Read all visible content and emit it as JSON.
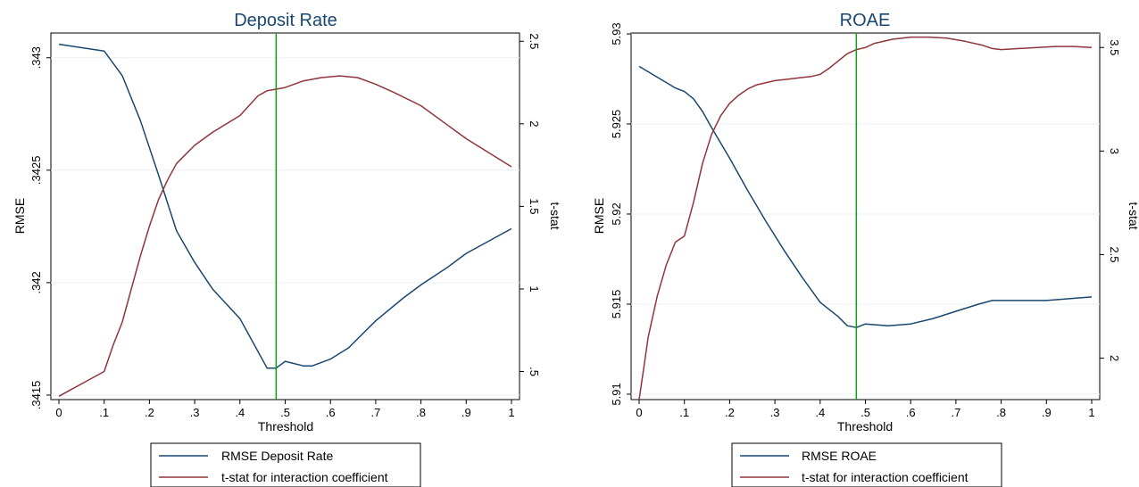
{
  "chart_data": [
    {
      "type": "line",
      "title": "Deposit Rate",
      "xlabel": "Threshold",
      "ylabel_left": "RMSE",
      "ylabel_right": "t-stat",
      "x_ticks": [
        "0",
        ".1",
        ".2",
        ".3",
        ".4",
        ".5",
        ".6",
        ".7",
        ".8",
        ".9",
        "1"
      ],
      "x_range": [
        0,
        1
      ],
      "left_ylim": [
        0.34148,
        0.34311
      ],
      "left_ticks": [
        ".3415",
        ".342",
        ".3425",
        ".343"
      ],
      "left_tick_values": [
        0.3415,
        0.342,
        0.3425,
        0.343
      ],
      "right_ylim": [
        0.33,
        2.55
      ],
      "right_ticks": [
        ".5",
        "1",
        "1.5",
        "2",
        "2.5"
      ],
      "right_tick_values": [
        0.5,
        1,
        1.5,
        2,
        2.5
      ],
      "grid": true,
      "legend_position": "bottom",
      "vline_x": 0.48,
      "vline_color": "#109c10",
      "series": [
        {
          "name": "RMSE Deposit Rate",
          "axis": "left",
          "color": "#1a476f",
          "x": [
            0,
            0.1,
            0.14,
            0.18,
            0.22,
            0.26,
            0.3,
            0.34,
            0.4,
            0.46,
            0.48,
            0.5,
            0.54,
            0.56,
            0.6,
            0.64,
            0.66,
            0.7,
            0.76,
            0.8,
            0.86,
            0.9,
            1.0
          ],
          "y": [
            0.34306,
            0.34303,
            0.34292,
            0.34272,
            0.34248,
            0.34223,
            0.34209,
            0.34197,
            0.34184,
            0.34162,
            0.34162,
            0.34165,
            0.34163,
            0.34163,
            0.34166,
            0.34171,
            0.34175,
            0.34183,
            0.34193,
            0.34199,
            0.34207,
            0.34213,
            0.34224
          ]
        },
        {
          "name": "t-stat for interaction coefficient",
          "axis": "right",
          "color": "#90353b",
          "x": [
            0,
            0.02,
            0.06,
            0.1,
            0.12,
            0.14,
            0.16,
            0.18,
            0.2,
            0.22,
            0.24,
            0.26,
            0.3,
            0.34,
            0.4,
            0.44,
            0.46,
            0.5,
            0.54,
            0.58,
            0.62,
            0.66,
            0.7,
            0.74,
            0.8,
            0.86,
            0.9,
            1.0
          ],
          "y": [
            0.35,
            0.38,
            0.44,
            0.5,
            0.66,
            0.8,
            1.0,
            1.2,
            1.38,
            1.54,
            1.66,
            1.76,
            1.87,
            1.95,
            2.05,
            2.17,
            2.2,
            2.22,
            2.26,
            2.28,
            2.29,
            2.28,
            2.24,
            2.19,
            2.11,
            1.99,
            1.91,
            1.74
          ]
        }
      ]
    },
    {
      "type": "line",
      "title": "ROAE",
      "xlabel": "Threshold",
      "ylabel_left": "RMSE",
      "ylabel_right": "t-stat",
      "x_ticks": [
        "0",
        ".1",
        ".2",
        ".3",
        ".4",
        ".5",
        ".6",
        ".7",
        ".8",
        ".9",
        "1"
      ],
      "x_range": [
        0,
        1
      ],
      "left_ylim": [
        5.9097,
        5.93005
      ],
      "left_ticks": [
        "5.91",
        "5.915",
        "5.92",
        "5.925",
        "5.93"
      ],
      "left_tick_values": [
        5.91,
        5.915,
        5.92,
        5.925,
        5.93
      ],
      "right_ylim": [
        1.8,
        3.57
      ],
      "right_ticks": [
        "2",
        "2.5",
        "3",
        "3.5"
      ],
      "right_tick_values": [
        2,
        2.5,
        3,
        3.5
      ],
      "grid": true,
      "legend_position": "bottom",
      "vline_x": 0.48,
      "vline_color": "#109c10",
      "series": [
        {
          "name": "RMSE ROAE",
          "axis": "left",
          "color": "#1a476f",
          "x": [
            0,
            0.04,
            0.08,
            0.1,
            0.12,
            0.14,
            0.16,
            0.2,
            0.24,
            0.28,
            0.32,
            0.36,
            0.4,
            0.44,
            0.46,
            0.48,
            0.5,
            0.55,
            0.6,
            0.65,
            0.7,
            0.75,
            0.78,
            0.8,
            0.85,
            0.9,
            0.95,
            1.0
          ],
          "y": [
            5.9282,
            5.9276,
            5.927,
            5.9268,
            5.9264,
            5.9257,
            5.9248,
            5.9231,
            5.9213,
            5.9196,
            5.918,
            5.9165,
            5.9151,
            5.9143,
            5.9138,
            5.9137,
            5.9139,
            5.9138,
            5.9139,
            5.9142,
            5.9146,
            5.915,
            5.9152,
            5.9152,
            5.9152,
            5.9152,
            5.9153,
            5.9154
          ]
        },
        {
          "name": "t-stat for interaction coefficient",
          "axis": "right",
          "color": "#90353b",
          "x": [
            0,
            0.01,
            0.02,
            0.04,
            0.06,
            0.08,
            0.1,
            0.12,
            0.14,
            0.16,
            0.18,
            0.2,
            0.22,
            0.24,
            0.26,
            0.3,
            0.34,
            0.38,
            0.4,
            0.42,
            0.46,
            0.48,
            0.5,
            0.52,
            0.56,
            0.6,
            0.64,
            0.68,
            0.72,
            0.76,
            0.78,
            0.8,
            0.84,
            0.88,
            0.92,
            0.96,
            1.0
          ],
          "y": [
            1.8,
            1.95,
            2.1,
            2.3,
            2.45,
            2.56,
            2.59,
            2.75,
            2.94,
            3.08,
            3.17,
            3.23,
            3.27,
            3.3,
            3.32,
            3.34,
            3.35,
            3.36,
            3.37,
            3.4,
            3.47,
            3.49,
            3.5,
            3.52,
            3.54,
            3.55,
            3.55,
            3.545,
            3.53,
            3.51,
            3.495,
            3.49,
            3.495,
            3.5,
            3.505,
            3.505,
            3.5
          ]
        }
      ]
    }
  ]
}
